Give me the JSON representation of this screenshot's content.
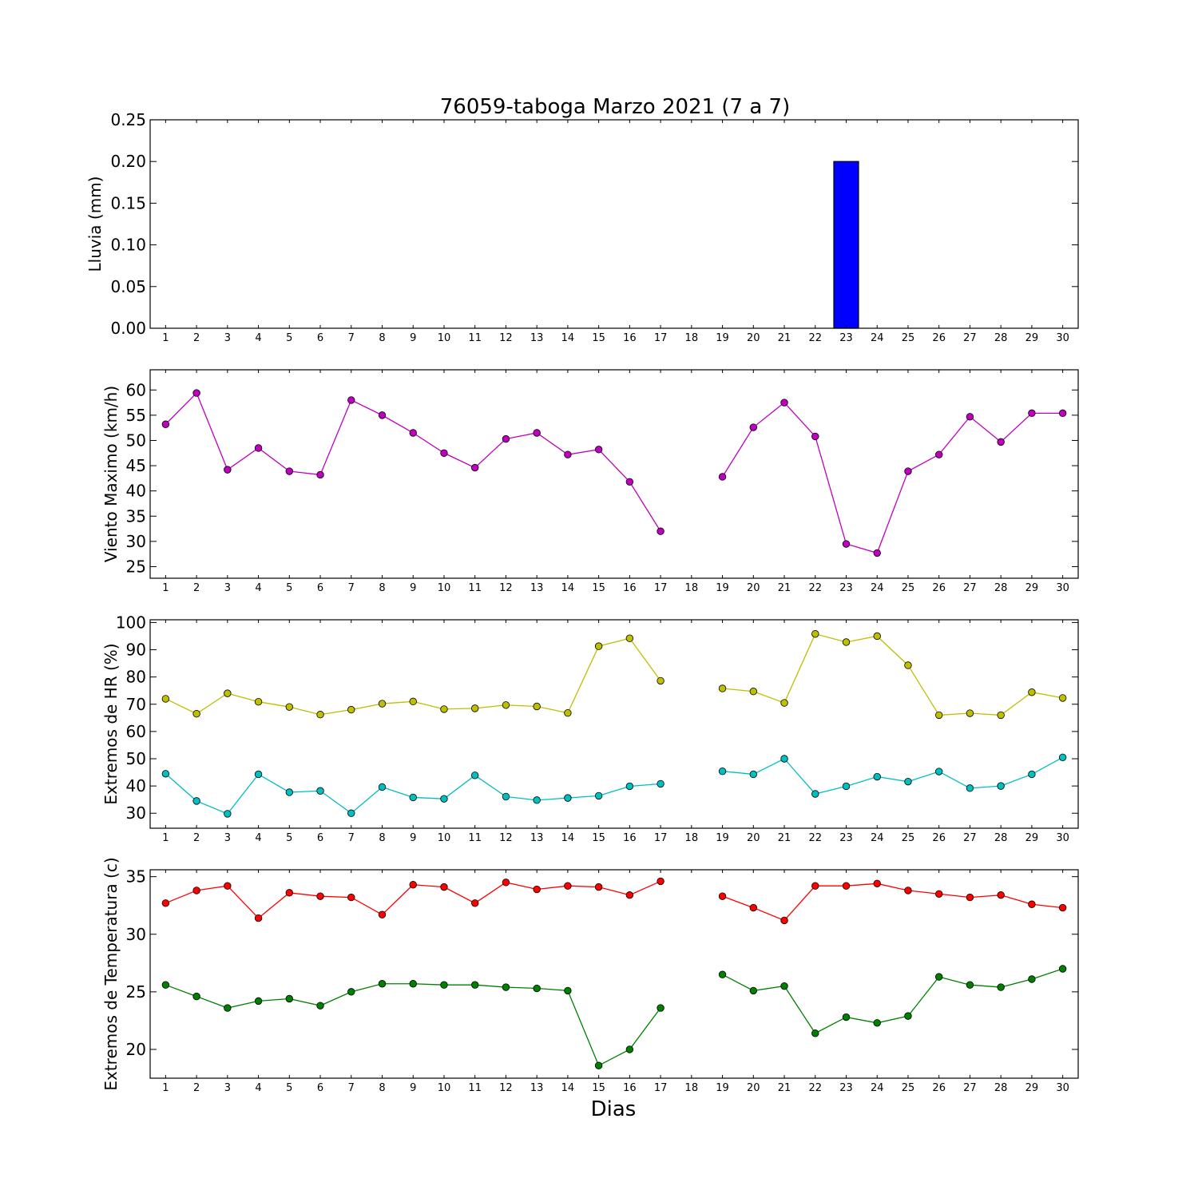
{
  "figure": {
    "title": "76059-taboga Marzo 2021  (7 a 7)",
    "xlabel": "Dias"
  },
  "chart_data": [
    {
      "type": "bar",
      "ylabel": "Lluvia (mm)",
      "categories": [
        1,
        2,
        3,
        4,
        5,
        6,
        7,
        8,
        9,
        10,
        11,
        12,
        13,
        14,
        15,
        16,
        17,
        18,
        19,
        20,
        21,
        22,
        23,
        24,
        25,
        26,
        27,
        28,
        29,
        30
      ],
      "values": [
        0,
        0,
        0,
        0,
        0,
        0,
        0,
        0,
        0,
        0,
        0,
        0,
        0,
        0,
        0,
        0,
        0,
        0,
        0,
        0,
        0,
        0,
        0.2,
        0,
        0,
        0,
        0,
        0,
        0,
        0
      ],
      "ylim": [
        0,
        0.25
      ],
      "yticks": [
        0.0,
        0.05,
        0.1,
        0.15,
        0.2,
        0.25
      ],
      "ytick_labels": [
        "0.00",
        "0.05",
        "0.10",
        "0.15",
        "0.20",
        "0.25"
      ],
      "color": "#0000ff"
    },
    {
      "type": "line",
      "ylabel": "Viento Maximo (km/h)",
      "categories": [
        1,
        2,
        3,
        4,
        5,
        6,
        7,
        8,
        9,
        10,
        11,
        12,
        13,
        14,
        15,
        16,
        17,
        18,
        19,
        20,
        21,
        22,
        23,
        24,
        25,
        26,
        27,
        28,
        29,
        30
      ],
      "series": [
        {
          "color": "#bf00bf",
          "values": [
            53.2,
            59.4,
            44.2,
            48.5,
            43.9,
            43.2,
            58.0,
            55.0,
            51.5,
            47.5,
            44.6,
            50.3,
            51.5,
            47.2,
            48.2,
            41.8,
            32.0,
            null,
            42.8,
            52.6,
            57.5,
            50.8,
            29.5,
            27.7,
            43.9,
            47.2,
            54.7,
            49.7,
            55.4,
            55.4
          ]
        }
      ],
      "ylim": [
        22.7,
        64
      ],
      "yticks": [
        25,
        30,
        35,
        40,
        45,
        50,
        55,
        60
      ],
      "ytick_labels": [
        "25",
        "30",
        "35",
        "40",
        "45",
        "50",
        "55",
        "60"
      ]
    },
    {
      "type": "line",
      "ylabel": "Extremos de HR (%)",
      "categories": [
        1,
        2,
        3,
        4,
        5,
        6,
        7,
        8,
        9,
        10,
        11,
        12,
        13,
        14,
        15,
        16,
        17,
        18,
        19,
        20,
        21,
        22,
        23,
        24,
        25,
        26,
        27,
        28,
        29,
        30
      ],
      "series": [
        {
          "color": "#bfbf00",
          "values": [
            72.0,
            66.5,
            74.0,
            70.9,
            69.0,
            66.2,
            68.0,
            70.2,
            71.0,
            68.2,
            68.5,
            69.7,
            69.2,
            66.8,
            91.3,
            94.2,
            78.6,
            null,
            75.8,
            74.7,
            70.5,
            95.8,
            92.8,
            95.0,
            84.3,
            66.0,
            66.7,
            66.0,
            74.4,
            72.3
          ]
        },
        {
          "color": "#00bfbf",
          "values": [
            44.5,
            34.5,
            29.8,
            44.3,
            37.7,
            38.2,
            30.0,
            39.6,
            35.8,
            35.3,
            43.9,
            36.1,
            34.8,
            35.6,
            36.4,
            39.9,
            40.8,
            null,
            45.4,
            44.3,
            50.0,
            37.1,
            39.9,
            43.4,
            41.6,
            45.3,
            39.2,
            40.0,
            44.3,
            50.5
          ]
        }
      ],
      "ylim": [
        24.5,
        101
      ],
      "yticks": [
        30,
        40,
        50,
        60,
        70,
        80,
        90,
        100
      ],
      "ytick_labels": [
        "30",
        "40",
        "50",
        "60",
        "70",
        "80",
        "90",
        "100"
      ]
    },
    {
      "type": "line",
      "ylabel": "Extremos de Temperatura (c)",
      "categories": [
        1,
        2,
        3,
        4,
        5,
        6,
        7,
        8,
        9,
        10,
        11,
        12,
        13,
        14,
        15,
        16,
        17,
        18,
        19,
        20,
        21,
        22,
        23,
        24,
        25,
        26,
        27,
        28,
        29,
        30
      ],
      "series": [
        {
          "color": "#ff0000",
          "values": [
            32.7,
            33.8,
            34.2,
            31.4,
            33.6,
            33.3,
            33.2,
            31.7,
            34.3,
            34.1,
            32.7,
            34.5,
            33.9,
            34.2,
            34.1,
            33.4,
            34.6,
            null,
            33.3,
            32.3,
            31.2,
            34.2,
            34.2,
            34.4,
            33.8,
            33.5,
            33.2,
            33.4,
            32.6,
            32.3
          ]
        },
        {
          "color": "#008000",
          "values": [
            25.6,
            24.6,
            23.6,
            24.2,
            24.4,
            23.8,
            25.0,
            25.7,
            25.7,
            25.6,
            25.6,
            25.4,
            25.3,
            25.1,
            18.6,
            20.0,
            23.6,
            null,
            26.5,
            25.1,
            25.5,
            21.4,
            22.8,
            22.3,
            22.9,
            26.3,
            25.6,
            25.4,
            26.1,
            27.0
          ]
        }
      ],
      "ylim": [
        17.5,
        35.6
      ],
      "yticks": [
        20,
        25,
        30,
        35
      ],
      "ytick_labels": [
        "20",
        "25",
        "30",
        "35"
      ]
    }
  ]
}
